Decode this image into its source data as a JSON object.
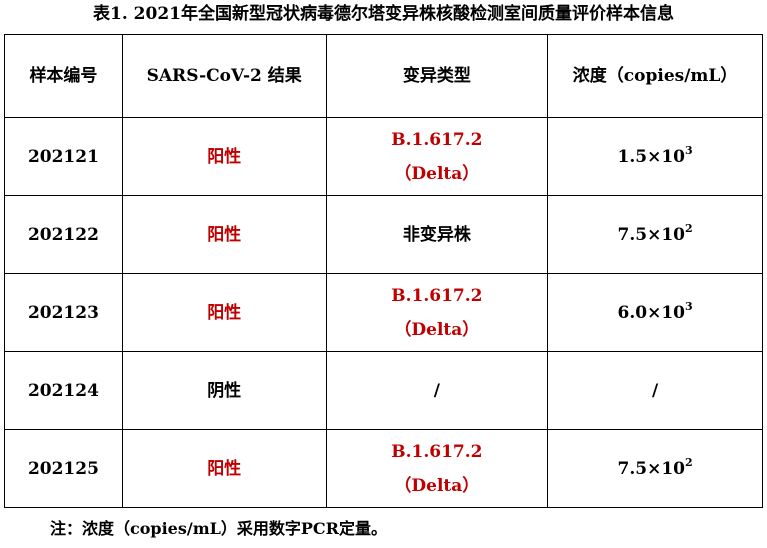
{
  "title": "表1. 2021年全国新型冠状病毒德尔塔变异株核酸检测室间质量评价样本信息",
  "headers": [
    "样本编号",
    "SARS-CoV-2 结果",
    "变异类型",
    "浓度（copies/mL）"
  ],
  "rows": [
    {
      "id": "202121",
      "result": "阳性",
      "result_color": "#c00000",
      "variant_line1": "B.1.617.2",
      "variant_line2": "（Delta）",
      "variant_color": "#c00000",
      "conc_base": "1.5×10",
      "conc_exp": "3"
    },
    {
      "id": "202122",
      "result": "阳性",
      "result_color": "#c00000",
      "variant_line1": "非变异株",
      "variant_line2": "",
      "variant_color": "#000000",
      "conc_base": "7.5×10",
      "conc_exp": "2"
    },
    {
      "id": "202123",
      "result": "阳性",
      "result_color": "#c00000",
      "variant_line1": "B.1.617.2",
      "variant_line2": "（Delta）",
      "variant_color": "#c00000",
      "conc_base": "6.0×10",
      "conc_exp": "3"
    },
    {
      "id": "202124",
      "result": "阴性",
      "result_color": "#000000",
      "variant_line1": "/",
      "variant_line2": "",
      "variant_color": "#000000",
      "conc_base": "/",
      "conc_exp": ""
    },
    {
      "id": "202125",
      "result": "阳性",
      "result_color": "#c00000",
      "variant_line1": "B.1.617.2",
      "variant_line2": "（Delta）",
      "variant_color": "#c00000",
      "conc_base": "7.5×10",
      "conc_exp": "2"
    }
  ],
  "note": "注：浓度（copies/mL）采用数字PCR定量。"
}
